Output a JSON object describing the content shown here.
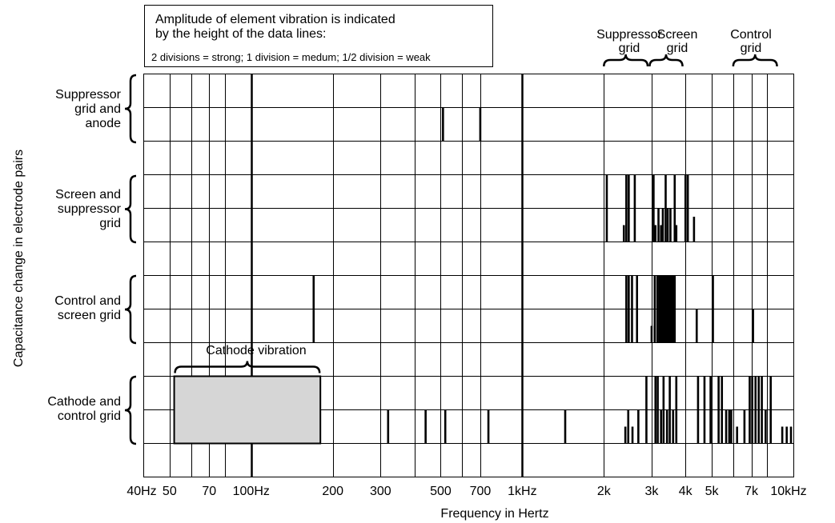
{
  "chart_data": {
    "type": "bar",
    "xlabel": "Frequency in Hertz",
    "ylabel": "Capacitance change in electrode pairs",
    "xscale": "log",
    "xlim": [
      40,
      10000
    ],
    "x_ticks": [
      {
        "value": 40,
        "label": "40Hz"
      },
      {
        "value": 50,
        "label": "50"
      },
      {
        "value": 70,
        "label": "70"
      },
      {
        "value": 100,
        "label": "100Hz"
      },
      {
        "value": 200,
        "label": "200"
      },
      {
        "value": 300,
        "label": "300"
      },
      {
        "value": 500,
        "label": "500"
      },
      {
        "value": 700,
        "label": "700"
      },
      {
        "value": 1000,
        "label": "1kHz"
      },
      {
        "value": 2000,
        "label": "2k"
      },
      {
        "value": 3000,
        "label": "3k"
      },
      {
        "value": 4000,
        "label": "4k"
      },
      {
        "value": 5000,
        "label": "5k"
      },
      {
        "value": 7000,
        "label": "7k"
      },
      {
        "value": 10000,
        "label": "10kHz"
      }
    ],
    "grid_lines_x": [
      40,
      50,
      60,
      70,
      80,
      100,
      200,
      300,
      400,
      500,
      600,
      700,
      1000,
      2000,
      3000,
      4000,
      5000,
      6000,
      7000,
      8000,
      10000
    ],
    "major_lines_x": [
      100,
      1000
    ],
    "legend_note": {
      "line1": "Amplitude of element vibration is indicated",
      "line2": "by the height of the data lines:",
      "line3": "2 divisions = strong; 1 division = medum; 1/2 division = weak"
    },
    "band_labels": [
      {
        "name": "Suppressor grid",
        "lines": [
          "Suppressor",
          "grid"
        ],
        "range": [
          2000,
          2900
        ]
      },
      {
        "name": "Screen grid",
        "lines": [
          "Screen",
          "grid"
        ],
        "range": [
          2950,
          3900
        ]
      },
      {
        "name": "Control grid",
        "lines": [
          "Control",
          "grid"
        ],
        "range": [
          6000,
          8700
        ]
      }
    ],
    "series": [
      {
        "lines": [
          "Suppressor",
          "grid and",
          "anode"
        ],
        "lines_data": [
          {
            "x": 510,
            "amp": 1
          },
          {
            "x": 700,
            "amp": 1
          }
        ]
      },
      {
        "lines": [
          "Screen and",
          "suppressor",
          "grid"
        ],
        "lines_data": [
          {
            "x": 2050,
            "amp": 2
          },
          {
            "x": 2370,
            "amp": 0.5
          },
          {
            "x": 2420,
            "amp": 2
          },
          {
            "x": 2470,
            "amp": 2
          },
          {
            "x": 2600,
            "amp": 2
          },
          {
            "x": 3050,
            "amp": 2
          },
          {
            "x": 3100,
            "amp": 0.5
          },
          {
            "x": 3180,
            "amp": 1
          },
          {
            "x": 3250,
            "amp": 0.5
          },
          {
            "x": 3300,
            "amp": 1
          },
          {
            "x": 3380,
            "amp": 2
          },
          {
            "x": 3440,
            "amp": 1
          },
          {
            "x": 3520,
            "amp": 1
          },
          {
            "x": 3650,
            "amp": 2
          },
          {
            "x": 3700,
            "amp": 0.5
          },
          {
            "x": 4000,
            "amp": 2
          },
          {
            "x": 4080,
            "amp": 2
          },
          {
            "x": 4300,
            "amp": 0.75
          }
        ]
      },
      {
        "lines": [
          "Control and",
          "screen grid"
        ],
        "lines_data": [
          {
            "x": 170,
            "amp": 2
          },
          {
            "x": 2420,
            "amp": 2
          },
          {
            "x": 2470,
            "amp": 2
          },
          {
            "x": 2540,
            "amp": 2
          },
          {
            "x": 2650,
            "amp": 2
          },
          {
            "x": 3000,
            "amp": 0.5
          },
          {
            "x": 3080,
            "amp": 2
          },
          {
            "x": 3150,
            "amp": 2
          },
          {
            "x": 3200,
            "amp": 2
          },
          {
            "x": 3250,
            "amp": 2
          },
          {
            "x": 3300,
            "amp": 2
          },
          {
            "x": 3350,
            "amp": 2
          },
          {
            "x": 3400,
            "amp": 2
          },
          {
            "x": 3450,
            "amp": 2
          },
          {
            "x": 3500,
            "amp": 2
          },
          {
            "x": 3550,
            "amp": 2
          },
          {
            "x": 3600,
            "amp": 2
          },
          {
            "x": 3650,
            "amp": 2
          },
          {
            "x": 4400,
            "amp": 1
          },
          {
            "x": 5050,
            "amp": 2
          },
          {
            "x": 7100,
            "amp": 1
          }
        ]
      },
      {
        "lines": [
          "Cathode and",
          "control grid"
        ],
        "lines_data": [
          {
            "x": 320,
            "amp": 1
          },
          {
            "x": 440,
            "amp": 1
          },
          {
            "x": 520,
            "amp": 1
          },
          {
            "x": 750,
            "amp": 1
          },
          {
            "x": 1440,
            "amp": 1
          },
          {
            "x": 2400,
            "amp": 0.5
          },
          {
            "x": 2460,
            "amp": 1
          },
          {
            "x": 2550,
            "amp": 0.5
          },
          {
            "x": 2680,
            "amp": 1
          },
          {
            "x": 2870,
            "amp": 2
          },
          {
            "x": 3100,
            "amp": 2
          },
          {
            "x": 3160,
            "amp": 2
          },
          {
            "x": 3250,
            "amp": 1
          },
          {
            "x": 3320,
            "amp": 2
          },
          {
            "x": 3420,
            "amp": 1
          },
          {
            "x": 3500,
            "amp": 2
          },
          {
            "x": 3600,
            "amp": 1
          },
          {
            "x": 3700,
            "amp": 2
          },
          {
            "x": 4450,
            "amp": 2
          },
          {
            "x": 4700,
            "amp": 2
          },
          {
            "x": 4950,
            "amp": 2
          },
          {
            "x": 5300,
            "amp": 2
          },
          {
            "x": 5450,
            "amp": 2
          },
          {
            "x": 5650,
            "amp": 1
          },
          {
            "x": 5800,
            "amp": 1
          },
          {
            "x": 5900,
            "amp": 1
          },
          {
            "x": 6200,
            "amp": 0.5
          },
          {
            "x": 6600,
            "amp": 1
          },
          {
            "x": 6900,
            "amp": 2
          },
          {
            "x": 7050,
            "amp": 2
          },
          {
            "x": 7250,
            "amp": 2
          },
          {
            "x": 7450,
            "amp": 2
          },
          {
            "x": 7650,
            "amp": 2
          },
          {
            "x": 7900,
            "amp": 1
          },
          {
            "x": 8250,
            "amp": 2
          },
          {
            "x": 9100,
            "amp": 0.5
          },
          {
            "x": 9450,
            "amp": 0.5
          },
          {
            "x": 9800,
            "amp": 0.5
          }
        ],
        "regions": [
          {
            "label": "Cathode vibration",
            "x_range": [
              52,
              180
            ],
            "amp": 2
          }
        ]
      }
    ]
  }
}
